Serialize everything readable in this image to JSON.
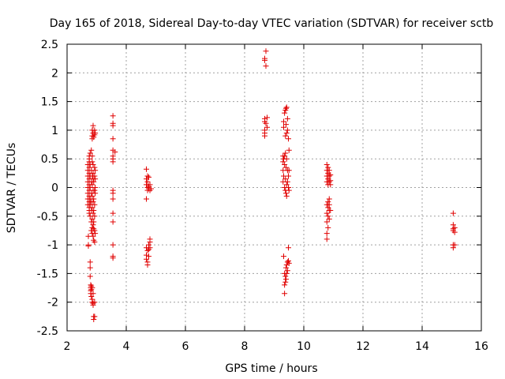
{
  "chart_data": {
    "type": "scatter",
    "title": "Day 165 of 2018, Sidereal Day-to-day VTEC variation (SDTVAR) for receiver sctb",
    "xlabel": "GPS time / hours",
    "ylabel": "SDTVAR / TECUs",
    "xlim": [
      2,
      16
    ],
    "ylim": [
      -2.5,
      2.5
    ],
    "xticks": [
      2,
      4,
      6,
      8,
      10,
      12,
      14,
      16
    ],
    "yticks": [
      -2.5,
      -2,
      -1.5,
      -1,
      -0.5,
      0,
      0.5,
      1,
      1.5,
      2,
      2.5
    ],
    "xtick_labels": [
      "2",
      "4",
      "6",
      "8",
      "10",
      "12",
      "14",
      "16"
    ],
    "ytick_labels": [
      "-2.5",
      "-2",
      "-1.5",
      "-1",
      "-0.5",
      "0",
      "0.5",
      "1",
      "1.5",
      "2",
      "2.5"
    ],
    "grid": true,
    "marker": "+",
    "marker_color": "#e00000",
    "series": [
      {
        "name": "SDTVAR",
        "points": [
          [
            2.7,
            0.4
          ],
          [
            2.7,
            0.3
          ],
          [
            2.7,
            0.2
          ],
          [
            2.7,
            0.1
          ],
          [
            2.7,
            0.0
          ],
          [
            2.7,
            -0.1
          ],
          [
            2.7,
            -0.2
          ],
          [
            2.7,
            -0.3
          ],
          [
            2.72,
            -0.85
          ],
          [
            2.72,
            -1.0
          ],
          [
            2.72,
            -1.02
          ],
          [
            2.75,
            0.55
          ],
          [
            2.75,
            0.5
          ],
          [
            2.75,
            0.45
          ],
          [
            2.75,
            0.35
          ],
          [
            2.75,
            0.25
          ],
          [
            2.75,
            0.15
          ],
          [
            2.75,
            0.05
          ],
          [
            2.75,
            -0.05
          ],
          [
            2.75,
            -0.15
          ],
          [
            2.75,
            -0.25
          ],
          [
            2.75,
            -0.35
          ],
          [
            2.75,
            -0.4
          ],
          [
            2.75,
            -0.45
          ],
          [
            2.78,
            0.6
          ],
          [
            2.78,
            0.4
          ],
          [
            2.78,
            0.2
          ],
          [
            2.78,
            0.0
          ],
          [
            2.78,
            -0.2
          ],
          [
            2.78,
            -0.3
          ],
          [
            2.78,
            -0.5
          ],
          [
            2.78,
            -1.3
          ],
          [
            2.78,
            -1.4
          ],
          [
            2.78,
            -1.55
          ],
          [
            2.8,
            -1.7
          ],
          [
            2.8,
            -1.75
          ],
          [
            2.8,
            -1.8
          ],
          [
            2.8,
            -1.85
          ],
          [
            2.82,
            0.65
          ],
          [
            2.82,
            0.3
          ],
          [
            2.82,
            0.1
          ],
          [
            2.82,
            -0.1
          ],
          [
            2.82,
            -0.25
          ],
          [
            2.82,
            -0.4
          ],
          [
            2.82,
            -0.6
          ],
          [
            2.82,
            -0.75
          ],
          [
            2.82,
            -1.72
          ],
          [
            2.82,
            -1.78
          ],
          [
            2.82,
            -1.9
          ],
          [
            2.85,
            1.0
          ],
          [
            2.85,
            0.9
          ],
          [
            2.85,
            0.85
          ],
          [
            2.85,
            0.55
          ],
          [
            2.85,
            0.45
          ],
          [
            2.85,
            0.2
          ],
          [
            2.85,
            0.05
          ],
          [
            2.85,
            -0.15
          ],
          [
            2.85,
            -0.35
          ],
          [
            2.85,
            -0.55
          ],
          [
            2.85,
            -0.7
          ],
          [
            2.85,
            -0.8
          ],
          [
            2.85,
            -1.75
          ],
          [
            2.85,
            -1.95
          ],
          [
            2.85,
            -2.0
          ],
          [
            2.88,
            1.08
          ],
          [
            2.88,
            0.95
          ],
          [
            2.88,
            0.4
          ],
          [
            2.88,
            0.25
          ],
          [
            2.88,
            0.15
          ],
          [
            2.88,
            -0.05
          ],
          [
            2.88,
            -0.25
          ],
          [
            2.88,
            -0.45
          ],
          [
            2.88,
            -0.65
          ],
          [
            2.88,
            -0.85
          ],
          [
            2.88,
            -1.85
          ],
          [
            2.88,
            -2.02
          ],
          [
            2.88,
            -2.05
          ],
          [
            2.9,
            0.88
          ],
          [
            2.9,
            0.1
          ],
          [
            2.9,
            -0.2
          ],
          [
            2.9,
            -0.4
          ],
          [
            2.9,
            -0.6
          ],
          [
            2.9,
            -0.72
          ],
          [
            2.9,
            -0.92
          ],
          [
            2.9,
            -2.25
          ],
          [
            2.9,
            -2.3
          ],
          [
            2.93,
            1.0
          ],
          [
            2.93,
            0.92
          ],
          [
            2.93,
            0.35
          ],
          [
            2.93,
            0.2
          ],
          [
            2.93,
            -0.05
          ],
          [
            2.93,
            -0.3
          ],
          [
            2.93,
            -0.5
          ],
          [
            2.93,
            -0.75
          ],
          [
            2.93,
            -0.95
          ],
          [
            2.93,
            -2.0
          ],
          [
            2.93,
            -2.25
          ],
          [
            2.95,
            0.95
          ],
          [
            2.95,
            0.3
          ],
          [
            2.95,
            0.15
          ],
          [
            2.95,
            0.0
          ],
          [
            2.95,
            -0.1
          ],
          [
            2.95,
            -0.8
          ],
          [
            3.55,
            1.25
          ],
          [
            3.55,
            1.12
          ],
          [
            3.55,
            1.08
          ],
          [
            3.55,
            0.85
          ],
          [
            3.55,
            0.65
          ],
          [
            3.55,
            0.55
          ],
          [
            3.55,
            0.5
          ],
          [
            3.55,
            0.45
          ],
          [
            3.55,
            -0.05
          ],
          [
            3.55,
            -0.1
          ],
          [
            3.55,
            -0.2
          ],
          [
            3.55,
            -0.45
          ],
          [
            3.55,
            -0.6
          ],
          [
            3.55,
            -1.0
          ],
          [
            3.55,
            -1.2
          ],
          [
            3.55,
            -1.23
          ],
          [
            3.62,
            0.62
          ],
          [
            4.68,
            0.32
          ],
          [
            4.68,
            0.15
          ],
          [
            4.68,
            0.05
          ],
          [
            4.68,
            -0.2
          ],
          [
            4.68,
            -1.05
          ],
          [
            4.68,
            -1.18
          ],
          [
            4.68,
            -1.25
          ],
          [
            4.72,
            0.2
          ],
          [
            4.72,
            0.1
          ],
          [
            4.72,
            0.0
          ],
          [
            4.72,
            -0.05
          ],
          [
            4.72,
            -1.1
          ],
          [
            4.72,
            -1.3
          ],
          [
            4.72,
            -1.35
          ],
          [
            4.76,
            0.18
          ],
          [
            4.76,
            0.02
          ],
          [
            4.76,
            -0.02
          ],
          [
            4.76,
            -1.0
          ],
          [
            4.76,
            -1.08
          ],
          [
            4.76,
            -1.2
          ],
          [
            4.8,
            0.05
          ],
          [
            4.8,
            -0.05
          ],
          [
            4.8,
            -0.9
          ],
          [
            4.8,
            -0.95
          ],
          [
            4.8,
            -1.05
          ],
          [
            4.84,
            -0.02
          ],
          [
            8.68,
            2.25
          ],
          [
            8.68,
            2.22
          ],
          [
            8.68,
            1.2
          ],
          [
            8.68,
            1.15
          ],
          [
            8.68,
            1.0
          ],
          [
            8.68,
            0.95
          ],
          [
            8.68,
            0.9
          ],
          [
            8.72,
            2.38
          ],
          [
            8.72,
            2.12
          ],
          [
            8.72,
            1.12
          ],
          [
            8.76,
            1.22
          ],
          [
            8.76,
            1.05
          ],
          [
            9.3,
            0.55
          ],
          [
            9.3,
            0.45
          ],
          [
            9.3,
            0.3
          ],
          [
            9.3,
            0.1
          ],
          [
            9.32,
            1.15
          ],
          [
            9.32,
            1.05
          ],
          [
            9.32,
            0.5
          ],
          [
            9.32,
            0.2
          ],
          [
            9.32,
            -1.2
          ],
          [
            9.35,
            1.3
          ],
          [
            9.35,
            0.55
          ],
          [
            9.35,
            0.4
          ],
          [
            9.35,
            0.0
          ],
          [
            9.35,
            -1.5
          ],
          [
            9.35,
            -1.7
          ],
          [
            9.35,
            -1.85
          ],
          [
            9.38,
            1.35
          ],
          [
            9.38,
            0.9
          ],
          [
            9.38,
            0.6
          ],
          [
            9.38,
            0.15
          ],
          [
            9.38,
            -0.05
          ],
          [
            9.38,
            -1.55
          ],
          [
            9.38,
            -1.65
          ],
          [
            9.4,
            1.38
          ],
          [
            9.4,
            1.1
          ],
          [
            9.4,
            0.35
          ],
          [
            9.4,
            -0.1
          ],
          [
            9.4,
            -1.4
          ],
          [
            9.4,
            -1.6
          ],
          [
            9.42,
            1.4
          ],
          [
            9.42,
            0.95
          ],
          [
            9.42,
            0.5
          ],
          [
            9.42,
            0.05
          ],
          [
            9.42,
            -0.15
          ],
          [
            9.42,
            -1.35
          ],
          [
            9.42,
            -1.5
          ],
          [
            9.45,
            1.2
          ],
          [
            9.45,
            1.0
          ],
          [
            9.45,
            0.3
          ],
          [
            9.45,
            0.1
          ],
          [
            9.45,
            -1.3
          ],
          [
            9.45,
            -1.45
          ],
          [
            9.48,
            0.85
          ],
          [
            9.48,
            0.2
          ],
          [
            9.48,
            0.0
          ],
          [
            9.48,
            -1.05
          ],
          [
            9.48,
            -1.28
          ],
          [
            9.5,
            0.65
          ],
          [
            9.5,
            0.3
          ],
          [
            9.5,
            -0.05
          ],
          [
            9.5,
            -1.32
          ],
          [
            10.78,
            0.4
          ],
          [
            10.78,
            0.3
          ],
          [
            10.78,
            0.2
          ],
          [
            10.78,
            0.1
          ],
          [
            10.78,
            -0.3
          ],
          [
            10.78,
            -0.45
          ],
          [
            10.78,
            -0.6
          ],
          [
            10.78,
            -0.8
          ],
          [
            10.78,
            -0.9
          ],
          [
            10.82,
            0.35
          ],
          [
            10.82,
            0.25
          ],
          [
            10.82,
            0.15
          ],
          [
            10.82,
            0.05
          ],
          [
            10.82,
            -0.25
          ],
          [
            10.82,
            -0.35
          ],
          [
            10.82,
            -0.5
          ],
          [
            10.82,
            -0.7
          ],
          [
            10.86,
            0.3
          ],
          [
            10.86,
            0.2
          ],
          [
            10.86,
            0.1
          ],
          [
            10.86,
            -0.2
          ],
          [
            10.86,
            -0.3
          ],
          [
            10.86,
            -0.4
          ],
          [
            10.86,
            -0.55
          ],
          [
            10.9,
            0.22
          ],
          [
            10.9,
            0.12
          ],
          [
            10.9,
            0.05
          ],
          [
            10.9,
            -0.4
          ],
          [
            15.05,
            -0.45
          ],
          [
            15.05,
            -0.65
          ],
          [
            15.05,
            -0.72
          ],
          [
            15.05,
            -0.75
          ],
          [
            15.05,
            -1.0
          ],
          [
            15.05,
            -1.05
          ],
          [
            15.1,
            -0.7
          ],
          [
            15.1,
            -0.78
          ],
          [
            15.1,
            -1.0
          ]
        ]
      }
    ]
  }
}
